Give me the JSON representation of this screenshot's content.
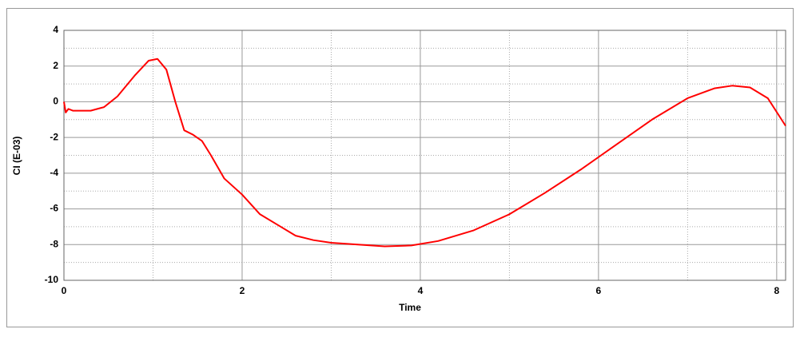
{
  "chart_data": {
    "type": "line",
    "x_label": "Time",
    "y_label": "CI (E-03)",
    "x": [
      0,
      0.02,
      0.05,
      0.1,
      0.3,
      0.45,
      0.6,
      0.8,
      0.95,
      1.05,
      1.15,
      1.25,
      1.35,
      1.45,
      1.55,
      1.65,
      1.8,
      2.0,
      2.2,
      2.4,
      2.6,
      2.8,
      3.0,
      3.3,
      3.6,
      3.9,
      4.2,
      4.6,
      5.0,
      5.4,
      5.8,
      6.2,
      6.6,
      7.0,
      7.3,
      7.5,
      7.7,
      7.9,
      8.1
    ],
    "series": [
      {
        "color": "#ff0000",
        "values": [
          0,
          -0.6,
          -0.4,
          -0.5,
          -0.5,
          -0.3,
          0.3,
          1.5,
          2.3,
          2.4,
          1.8,
          0,
          -1.6,
          -1.85,
          -2.2,
          -3,
          -4.3,
          -5.2,
          -6.3,
          -6.9,
          -7.5,
          -7.75,
          -7.9,
          -8.0,
          -8.1,
          -8.05,
          -7.8,
          -7.2,
          -6.3,
          -5.1,
          -3.8,
          -2.4,
          -1.0,
          0.2,
          0.75,
          0.9,
          0.8,
          0.2,
          -1.35
        ]
      }
    ],
    "xlim": [
      0,
      8.1
    ],
    "ylim": [
      -10,
      4
    ],
    "xticks": [
      0,
      2,
      4,
      6,
      8
    ],
    "yticks": [
      4,
      2,
      0,
      -2,
      -4,
      -6,
      -8,
      -10
    ],
    "xminor": [
      1,
      3,
      5,
      7
    ],
    "yminor": [
      3,
      1,
      -1,
      -3,
      -5,
      -7,
      -9
    ],
    "grid": true
  }
}
